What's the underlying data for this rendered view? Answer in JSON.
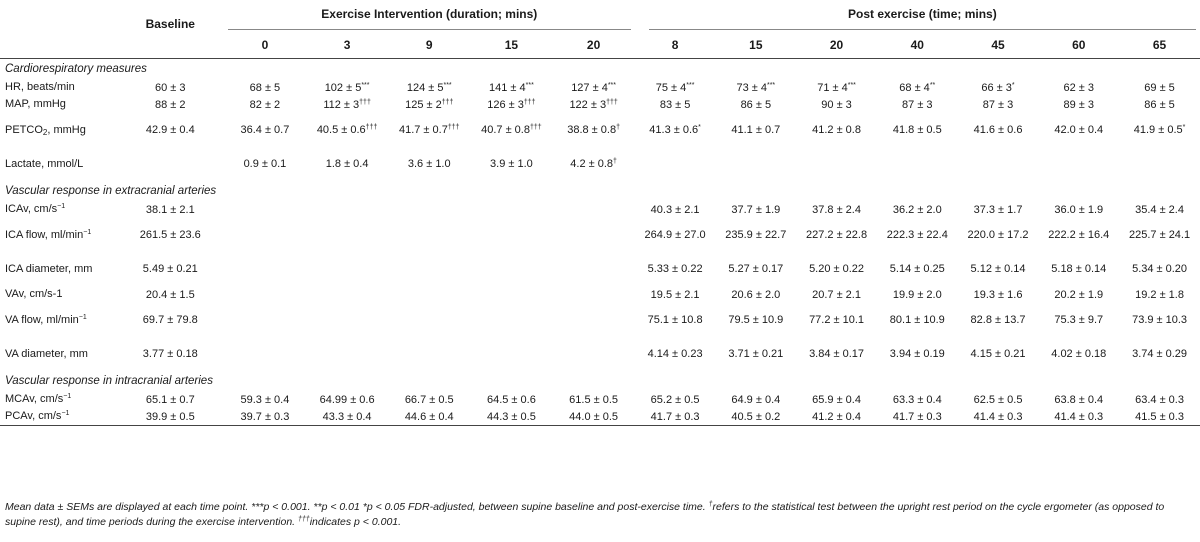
{
  "header": {
    "baseline": "Baseline",
    "exercise_group": "Exercise Intervention (duration; mins)",
    "post_group": "Post exercise (time; mins)",
    "exercise_times": [
      "0",
      "3",
      "9",
      "15",
      "20"
    ],
    "post_times": [
      "8",
      "15",
      "20",
      "40",
      "45",
      "60",
      "65"
    ]
  },
  "sections": [
    {
      "title": "Cardiorespiratory measures",
      "rows": [
        {
          "label": "HR, beats/min",
          "cells": [
            "60 ± 3",
            "68 ± 5",
            "102 ± 5",
            "124 ± 5",
            "141 ± 4",
            "127 ± 4",
            "75 ± 4",
            "73 ± 4",
            "71 ± 4",
            "68 ± 4",
            "66 ± 3",
            "62 ± 3",
            "69 ± 5"
          ],
          "sups": [
            "",
            "",
            "***",
            "***",
            "***",
            "***",
            "***",
            "***",
            "***",
            "**",
            "*",
            "",
            ""
          ]
        },
        {
          "label": "MAP, mmHg",
          "cells": [
            "88 ± 2",
            "82 ± 2",
            "112 ± 3",
            "125 ± 2",
            "126 ± 3",
            "122 ± 3",
            "83 ± 5",
            "86 ± 5",
            "90 ± 3",
            "87 ± 3",
            "87 ± 3",
            "89 ± 3",
            "86 ± 5"
          ],
          "sups": [
            "",
            "",
            "†††",
            "†††",
            "†††",
            "†††",
            "",
            "",
            "",
            "",
            "",
            "",
            ""
          ]
        },
        {
          "label_main": "PETCO",
          "label_sub": "2",
          "label_rest": ", mmHg",
          "tall": true,
          "cells": [
            "42.9 ± 0.4",
            "36.4 ± 0.7",
            "40.5 ± 0.6",
            "41.7 ± 0.7",
            "40.7 ± 0.8",
            "38.8 ± 0.8",
            "41.3 ± 0.6",
            "41.1 ± 0.7",
            "41.2 ± 0.8",
            "41.8 ± 0.5",
            "41.6 ± 0.6",
            "42.0 ± 0.4",
            "41.9 ± 0.5"
          ],
          "sups": [
            "",
            "",
            "†††",
            "†††",
            "†††",
            "†",
            "*",
            "",
            "",
            "",
            "",
            "",
            "*"
          ]
        },
        {
          "label": "Lactate, mmol/L",
          "tall": true,
          "cells": [
            "",
            "0.9 ± 0.1",
            "1.8 ± 0.4",
            "3.6 ± 1.0",
            "3.9 ± 1.0",
            "4.2 ± 0.8",
            "",
            "",
            "",
            "",
            "",
            "",
            ""
          ],
          "sups": [
            "",
            "",
            "",
            "",
            "",
            "†",
            "",
            "",
            "",
            "",
            "",
            "",
            ""
          ]
        }
      ]
    },
    {
      "title": "Vascular response in extracranial arteries",
      "rows": [
        {
          "label": "ICAv, cm/s",
          "label_sup": "−1",
          "cells": [
            "38.1 ± 2.1",
            "",
            "",
            "",
            "",
            "",
            "40.3 ± 2.1",
            "37.7 ± 1.9",
            "37.8 ± 2.4",
            "36.2 ± 2.0",
            "37.3 ± 1.7",
            "36.0 ± 1.9",
            "35.4 ± 2.4"
          ]
        },
        {
          "label": "ICA flow, ml/min",
          "label_sup": "−1",
          "tall": true,
          "cells": [
            "261.5 ± 23.6",
            "",
            "",
            "",
            "",
            "",
            "264.9 ± 27.0",
            "235.9 ± 22.7",
            "227.2 ± 22.8",
            "222.3 ± 22.4",
            "220.0 ± 17.2",
            "222.2 ± 16.4",
            "225.7 ± 24.1"
          ]
        },
        {
          "label": "ICA diameter, mm",
          "tall": true,
          "cells": [
            "5.49 ± 0.21",
            "",
            "",
            "",
            "",
            "",
            "5.33 ± 0.22",
            "5.27 ± 0.17",
            "5.20 ± 0.22",
            "5.14 ± 0.25",
            "5.12 ± 0.14",
            "5.18 ± 0.14",
            "5.34 ± 0.20"
          ]
        },
        {
          "label": "VAv, cm/s-1",
          "cells": [
            "20.4 ± 1.5",
            "",
            "",
            "",
            "",
            "",
            "19.5 ± 2.1",
            "20.6 ± 2.0",
            "20.7 ± 2.1",
            "19.9 ± 2.0",
            "19.3 ± 1.6",
            "20.2 ± 1.9",
            "19.2 ± 1.8"
          ]
        },
        {
          "label": "VA flow, ml/min",
          "label_sup": "−1",
          "tall": true,
          "cells": [
            "69.7 ± 79.8",
            "",
            "",
            "",
            "",
            "",
            "75.1 ± 10.8",
            "79.5 ± 10.9",
            "77.2 ± 10.1",
            "80.1 ± 10.9",
            "82.8 ± 13.7",
            "75.3 ± 9.7",
            "73.9 ± 10.3"
          ]
        },
        {
          "label": "VA diameter, mm",
          "tall": true,
          "cells": [
            "3.77 ± 0.18",
            "",
            "",
            "",
            "",
            "",
            "4.14 ± 0.23",
            "3.71 ± 0.21",
            "3.84 ± 0.17",
            "3.94 ± 0.19",
            "4.15 ± 0.21",
            "4.02 ± 0.18",
            "3.74 ± 0.29"
          ]
        }
      ]
    },
    {
      "title": "Vascular response in intracranial arteries",
      "rows": [
        {
          "label": "MCAv, cm/s",
          "label_sup": "−1",
          "cells": [
            "65.1 ± 0.7",
            "59.3 ± 0.4",
            "64.99 ± 0.6",
            "66.7 ± 0.5",
            "64.5 ± 0.6",
            "61.5 ± 0.5",
            "65.2 ± 0.5",
            "64.9 ± 0.4",
            "65.9 ± 0.4",
            "63.3 ± 0.4",
            "62.5 ± 0.5",
            "63.8 ± 0.4",
            "63.4 ± 0.3"
          ]
        },
        {
          "label": "PCAv, cm/s",
          "label_sup": "−1",
          "cells": [
            "39.9 ± 0.5",
            "39.7 ± 0.3",
            "43.3 ± 0.4",
            "44.6 ± 0.4",
            "44.3 ± 0.5",
            "44.0 ± 0.5",
            "41.7 ± 0.3",
            "40.5 ± 0.2",
            "41.2 ± 0.4",
            "41.7 ± 0.3",
            "41.4 ± 0.3",
            "41.4 ± 0.3",
            "41.5 ± 0.3"
          ]
        }
      ]
    }
  ],
  "footnote": {
    "p1": "Mean data ± SEMs are displayed at each time point. ***",
    "p1b": "p",
    "p1c": " < 0.001. **",
    "p1d": "p",
    "p1e": " < 0.01 *",
    "p1f": "p",
    "p1g": " < 0.05 FDR-adjusted, between supine baseline and post-exercise time. ",
    "dagger": "†",
    "p2": "refers to the statistical test between the upright rest period on the cycle ergometer (as opposed to supine rest), and time periods during the exercise intervention. ",
    "ddagger": "†††",
    "p3": "indicates ",
    "p3b": "p",
    "p3c": " < 0.001."
  }
}
